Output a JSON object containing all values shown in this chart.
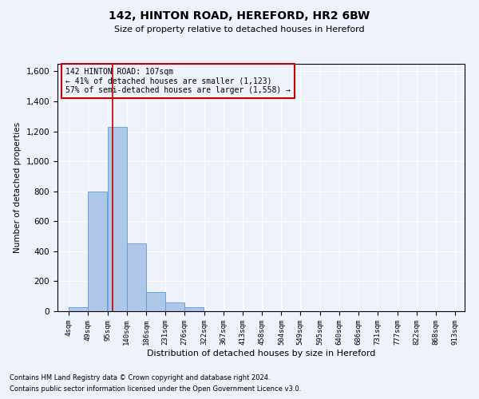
{
  "title1": "142, HINTON ROAD, HEREFORD, HR2 6BW",
  "title2": "Size of property relative to detached houses in Hereford",
  "xlabel": "Distribution of detached houses by size in Hereford",
  "ylabel": "Number of detached properties",
  "footnote1": "Contains HM Land Registry data © Crown copyright and database right 2024.",
  "footnote2": "Contains public sector information licensed under the Open Government Licence v3.0.",
  "annotation_line1": "142 HINTON ROAD: 107sqm",
  "annotation_line2": "← 41% of detached houses are smaller (1,123)",
  "annotation_line3": "57% of semi-detached houses are larger (1,558) →",
  "bin_edges": [
    4,
    49,
    95,
    140,
    186,
    231,
    276,
    322,
    367,
    413,
    458,
    504,
    549,
    595,
    640,
    686,
    731,
    777,
    822,
    868,
    913
  ],
  "bin_counts": [
    25,
    800,
    1230,
    450,
    130,
    60,
    25,
    0,
    0,
    0,
    0,
    0,
    0,
    0,
    0,
    0,
    0,
    0,
    0,
    0
  ],
  "bar_color": "#aec6e8",
  "bar_edge_color": "#5b9bd5",
  "vline_color": "#c00000",
  "vline_x": 107,
  "ylim": [
    0,
    1650
  ],
  "yticks": [
    0,
    200,
    400,
    600,
    800,
    1000,
    1200,
    1400,
    1600
  ],
  "bg_color": "#edf2fb",
  "annotation_box_color": "#c00000",
  "grid_color": "#ffffff"
}
